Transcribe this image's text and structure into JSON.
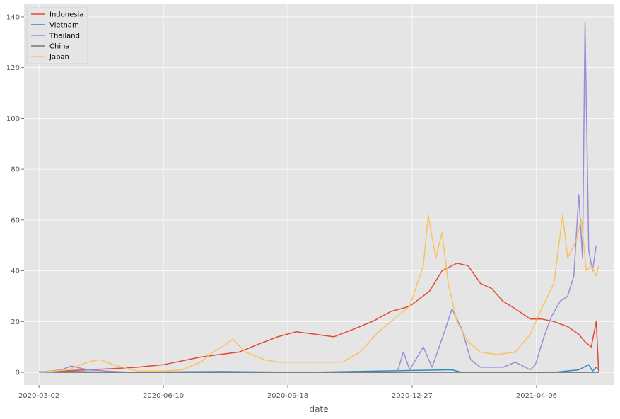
{
  "chart_data": {
    "type": "line",
    "xlabel": "date",
    "ylabel": "",
    "x_ticks": [
      "2020-03-02",
      "2020-06-10",
      "2020-09-18",
      "2020-12-27",
      "2021-04-06"
    ],
    "x_range": [
      "2020-03-02",
      "2021-05-26"
    ],
    "xlim": [
      "2020-02-19",
      "2021-06-07"
    ],
    "ylim": [
      -5,
      145
    ],
    "y_ticks": [
      0,
      20,
      40,
      60,
      80,
      100,
      120,
      140
    ],
    "grid": true,
    "legend_position": "top-left",
    "series": [
      {
        "name": "Indonesia",
        "color": "#E24A33",
        "points": [
          [
            "2020-03-02",
            0
          ],
          [
            "2020-03-20",
            0.5
          ],
          [
            "2020-04-10",
            1
          ],
          [
            "2020-05-01",
            1.5
          ],
          [
            "2020-05-20",
            2
          ],
          [
            "2020-06-10",
            3
          ],
          [
            "2020-06-25",
            4.5
          ],
          [
            "2020-07-10",
            6
          ],
          [
            "2020-07-25",
            7
          ],
          [
            "2020-08-10",
            8
          ],
          [
            "2020-08-25",
            11
          ],
          [
            "2020-09-10",
            14
          ],
          [
            "2020-09-25",
            16
          ],
          [
            "2020-10-10",
            15
          ],
          [
            "2020-10-25",
            14
          ],
          [
            "2020-11-10",
            17
          ],
          [
            "2020-11-25",
            20
          ],
          [
            "2020-12-10",
            24
          ],
          [
            "2020-12-25",
            26
          ],
          [
            "2021-01-10",
            32
          ],
          [
            "2021-01-20",
            40
          ],
          [
            "2021-02-01",
            43
          ],
          [
            "2021-02-10",
            42
          ],
          [
            "2021-02-20",
            35
          ],
          [
            "2021-03-01",
            33
          ],
          [
            "2021-03-10",
            28
          ],
          [
            "2021-03-20",
            25
          ],
          [
            "2021-04-01",
            21
          ],
          [
            "2021-04-10",
            21
          ],
          [
            "2021-04-20",
            20
          ],
          [
            "2021-05-01",
            18
          ],
          [
            "2021-05-10",
            15
          ],
          [
            "2021-05-15",
            12
          ],
          [
            "2021-05-20",
            10
          ],
          [
            "2021-05-24",
            20
          ],
          [
            "2021-05-26",
            0
          ]
        ]
      },
      {
        "name": "Vietnam",
        "color": "#348ABD",
        "points": [
          [
            "2020-03-02",
            0
          ],
          [
            "2020-04-01",
            0.3
          ],
          [
            "2020-05-01",
            0
          ],
          [
            "2020-07-28",
            0.3
          ],
          [
            "2020-08-10",
            0.2
          ],
          [
            "2020-10-01",
            0
          ],
          [
            "2021-01-28",
            1
          ],
          [
            "2021-02-05",
            0
          ],
          [
            "2021-04-20",
            0
          ],
          [
            "2021-05-10",
            1
          ],
          [
            "2021-05-18",
            3
          ],
          [
            "2021-05-21",
            0.5
          ],
          [
            "2021-05-24",
            2
          ],
          [
            "2021-05-26",
            1
          ]
        ]
      },
      {
        "name": "Thailand",
        "color": "#988ED5",
        "points": [
          [
            "2020-03-02",
            0
          ],
          [
            "2020-03-20",
            1
          ],
          [
            "2020-03-28",
            2.5
          ],
          [
            "2020-04-10",
            1
          ],
          [
            "2020-04-25",
            0.5
          ],
          [
            "2020-05-15",
            0
          ],
          [
            "2020-12-15",
            0
          ],
          [
            "2020-12-20",
            8
          ],
          [
            "2020-12-25",
            1
          ],
          [
            "2021-01-05",
            10
          ],
          [
            "2021-01-12",
            2
          ],
          [
            "2021-01-22",
            16
          ],
          [
            "2021-01-28",
            25
          ],
          [
            "2021-02-05",
            17
          ],
          [
            "2021-02-12",
            5
          ],
          [
            "2021-02-20",
            2
          ],
          [
            "2021-03-10",
            2
          ],
          [
            "2021-03-20",
            4
          ],
          [
            "2021-04-01",
            1
          ],
          [
            "2021-04-05",
            3
          ],
          [
            "2021-04-12",
            14
          ],
          [
            "2021-04-18",
            22
          ],
          [
            "2021-04-25",
            28
          ],
          [
            "2021-05-01",
            30
          ],
          [
            "2021-05-06",
            38
          ],
          [
            "2021-05-10",
            70
          ],
          [
            "2021-05-13",
            45
          ],
          [
            "2021-05-15",
            138
          ],
          [
            "2021-05-18",
            48
          ],
          [
            "2021-05-21",
            40
          ],
          [
            "2021-05-24",
            50
          ]
        ]
      },
      {
        "name": "China",
        "color": "#777777",
        "points": [
          [
            "2020-03-02",
            0.2
          ],
          [
            "2020-03-15",
            0
          ],
          [
            "2021-05-26",
            0
          ]
        ]
      },
      {
        "name": "Japan",
        "color": "#FBC15E",
        "points": [
          [
            "2020-03-02",
            0
          ],
          [
            "2020-03-25",
            1
          ],
          [
            "2020-04-10",
            4
          ],
          [
            "2020-04-20",
            5
          ],
          [
            "2020-05-01",
            3
          ],
          [
            "2020-05-20",
            0.5
          ],
          [
            "2020-06-10",
            0.5
          ],
          [
            "2020-06-25",
            1
          ],
          [
            "2020-07-10",
            4
          ],
          [
            "2020-07-20",
            8
          ],
          [
            "2020-07-30",
            11
          ],
          [
            "2020-08-05",
            13
          ],
          [
            "2020-08-15",
            8
          ],
          [
            "2020-08-30",
            5
          ],
          [
            "2020-09-10",
            4
          ],
          [
            "2020-09-25",
            4
          ],
          [
            "2020-10-15",
            4
          ],
          [
            "2020-11-01",
            4
          ],
          [
            "2020-11-15",
            8
          ],
          [
            "2020-11-30",
            16
          ],
          [
            "2020-12-10",
            20
          ],
          [
            "2020-12-25",
            26
          ],
          [
            "2021-01-05",
            42
          ],
          [
            "2021-01-09",
            62
          ],
          [
            "2021-01-15",
            45
          ],
          [
            "2021-01-20",
            55
          ],
          [
            "2021-01-25",
            35
          ],
          [
            "2021-02-01",
            20
          ],
          [
            "2021-02-10",
            12
          ],
          [
            "2021-02-20",
            8
          ],
          [
            "2021-03-05",
            7
          ],
          [
            "2021-03-20",
            8
          ],
          [
            "2021-04-01",
            15
          ],
          [
            "2021-04-10",
            25
          ],
          [
            "2021-04-20",
            35
          ],
          [
            "2021-04-27",
            62
          ],
          [
            "2021-05-01",
            45
          ],
          [
            "2021-05-08",
            52
          ],
          [
            "2021-05-12",
            60
          ],
          [
            "2021-05-16",
            40
          ],
          [
            "2021-05-20",
            42
          ],
          [
            "2021-05-24",
            38
          ],
          [
            "2021-05-26",
            42
          ]
        ]
      }
    ]
  }
}
